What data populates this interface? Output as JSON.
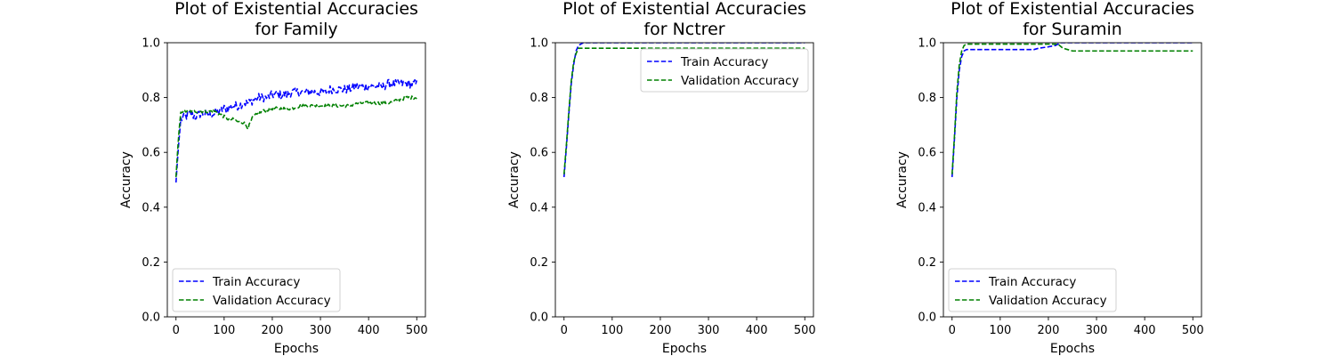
{
  "chart_data": [
    {
      "type": "line",
      "title": [
        "Plot of Existential Accuracies",
        "for Family"
      ],
      "xlabel": "Epochs",
      "ylabel": "Accuracy",
      "xlim": [
        -18,
        518
      ],
      "ylim": [
        0.0,
        1.0
      ],
      "xticks": [
        0,
        100,
        200,
        300,
        400,
        500
      ],
      "yticks": [
        0.0,
        0.2,
        0.4,
        0.6,
        0.8,
        1.0
      ],
      "xtick_labels": [
        "0",
        "100",
        "200",
        "300",
        "400",
        "500"
      ],
      "ytick_labels": [
        "0.0",
        "0.2",
        "0.4",
        "0.6",
        "0.8",
        "1.0"
      ],
      "grid": false,
      "legend_loc": "lower-left",
      "series": [
        {
          "name": "Train Accuracy",
          "color": "#0000ff",
          "linestyle": "dashed",
          "x": [
            0,
            5,
            10,
            20,
            30,
            40,
            50,
            60,
            70,
            80,
            90,
            100,
            110,
            120,
            130,
            140,
            150,
            160,
            170,
            180,
            190,
            200,
            210,
            220,
            230,
            240,
            250,
            260,
            270,
            280,
            290,
            300,
            310,
            320,
            330,
            340,
            350,
            360,
            370,
            380,
            390,
            400,
            410,
            420,
            430,
            440,
            450,
            460,
            470,
            480,
            490,
            500
          ],
          "y": [
            0.49,
            0.62,
            0.72,
            0.73,
            0.74,
            0.73,
            0.74,
            0.74,
            0.74,
            0.74,
            0.75,
            0.76,
            0.76,
            0.77,
            0.77,
            0.78,
            0.78,
            0.79,
            0.8,
            0.8,
            0.8,
            0.81,
            0.81,
            0.81,
            0.81,
            0.82,
            0.82,
            0.82,
            0.82,
            0.82,
            0.82,
            0.82,
            0.82,
            0.83,
            0.83,
            0.83,
            0.83,
            0.83,
            0.84,
            0.84,
            0.84,
            0.84,
            0.84,
            0.84,
            0.84,
            0.85,
            0.85,
            0.85,
            0.85,
            0.85,
            0.85,
            0.85
          ],
          "noise": 0.016
        },
        {
          "name": "Validation Accuracy",
          "color": "#008000",
          "linestyle": "dashed",
          "x": [
            0,
            5,
            10,
            20,
            40,
            60,
            80,
            90,
            100,
            110,
            120,
            130,
            140,
            150,
            160,
            170,
            180,
            200,
            220,
            240,
            260,
            280,
            300,
            320,
            340,
            360,
            380,
            400,
            420,
            440,
            460,
            480,
            500
          ],
          "y": [
            0.51,
            0.65,
            0.75,
            0.75,
            0.75,
            0.75,
            0.75,
            0.74,
            0.73,
            0.72,
            0.72,
            0.71,
            0.71,
            0.69,
            0.73,
            0.74,
            0.75,
            0.76,
            0.76,
            0.76,
            0.77,
            0.77,
            0.77,
            0.77,
            0.77,
            0.77,
            0.78,
            0.78,
            0.78,
            0.78,
            0.79,
            0.8,
            0.8
          ],
          "noise": 0.006
        }
      ]
    },
    {
      "type": "line",
      "title": [
        "Plot of Existential Accuracies",
        "for Nctrer"
      ],
      "xlabel": "Epochs",
      "ylabel": "Accuracy",
      "xlim": [
        -18,
        518
      ],
      "ylim": [
        0.0,
        1.0
      ],
      "xticks": [
        0,
        100,
        200,
        300,
        400,
        500
      ],
      "yticks": [
        0.0,
        0.2,
        0.4,
        0.6,
        0.8,
        1.0
      ],
      "xtick_labels": [
        "0",
        "100",
        "200",
        "300",
        "400",
        "500"
      ],
      "ytick_labels": [
        "0.0",
        "0.2",
        "0.4",
        "0.6",
        "0.8",
        "1.0"
      ],
      "grid": false,
      "legend_loc": "upper-right",
      "series": [
        {
          "name": "Train Accuracy",
          "color": "#0000ff",
          "linestyle": "dashed",
          "x": [
            0,
            5,
            10,
            15,
            20,
            25,
            30,
            40,
            60,
            100,
            200,
            300,
            400,
            500
          ],
          "y": [
            0.51,
            0.62,
            0.74,
            0.85,
            0.92,
            0.97,
            0.99,
            1.0,
            1.0,
            1.0,
            1.0,
            1.0,
            1.0,
            1.0
          ],
          "noise": 0
        },
        {
          "name": "Validation Accuracy",
          "color": "#008000",
          "linestyle": "dashed",
          "x": [
            0,
            5,
            10,
            15,
            20,
            25,
            30,
            40,
            60,
            100,
            200,
            300,
            400,
            450,
            480,
            500
          ],
          "y": [
            0.52,
            0.63,
            0.75,
            0.86,
            0.93,
            0.96,
            0.98,
            0.98,
            0.98,
            0.98,
            0.98,
            0.98,
            0.98,
            0.98,
            0.98,
            0.98
          ],
          "noise": 0
        }
      ]
    },
    {
      "type": "line",
      "title": [
        "Plot of Existential Accuracies",
        "for Suramin"
      ],
      "xlabel": "Epochs",
      "ylabel": "Accuracy",
      "xlim": [
        -18,
        518
      ],
      "ylim": [
        0.0,
        1.0
      ],
      "xticks": [
        0,
        100,
        200,
        300,
        400,
        500
      ],
      "yticks": [
        0.0,
        0.2,
        0.4,
        0.6,
        0.8,
        1.0
      ],
      "xtick_labels": [
        "0",
        "100",
        "200",
        "300",
        "400",
        "500"
      ],
      "ytick_labels": [
        "0.0",
        "0.2",
        "0.4",
        "0.6",
        "0.8",
        "1.0"
      ],
      "grid": false,
      "legend_loc": "lower-left",
      "series": [
        {
          "name": "Train Accuracy",
          "color": "#0000ff",
          "linestyle": "dashed",
          "x": [
            0,
            5,
            10,
            15,
            20,
            25,
            30,
            60,
            100,
            150,
            170,
            180,
            200,
            215,
            225,
            240,
            300,
            400,
            500
          ],
          "y": [
            0.51,
            0.65,
            0.8,
            0.9,
            0.95,
            0.97,
            0.975,
            0.975,
            0.975,
            0.975,
            0.975,
            0.98,
            0.985,
            0.99,
            1.0,
            1.0,
            1.0,
            1.0,
            1.0
          ],
          "noise": 0
        },
        {
          "name": "Validation Accuracy",
          "color": "#008000",
          "linestyle": "dashed",
          "x": [
            0,
            5,
            10,
            15,
            20,
            25,
            30,
            40,
            60,
            100,
            150,
            200,
            220,
            230,
            240,
            250,
            300,
            400,
            500
          ],
          "y": [
            0.52,
            0.66,
            0.82,
            0.92,
            0.97,
            0.99,
            0.995,
            0.995,
            0.995,
            0.995,
            0.995,
            0.995,
            0.995,
            0.98,
            0.975,
            0.97,
            0.97,
            0.97,
            0.97
          ],
          "noise": 0
        }
      ]
    }
  ]
}
